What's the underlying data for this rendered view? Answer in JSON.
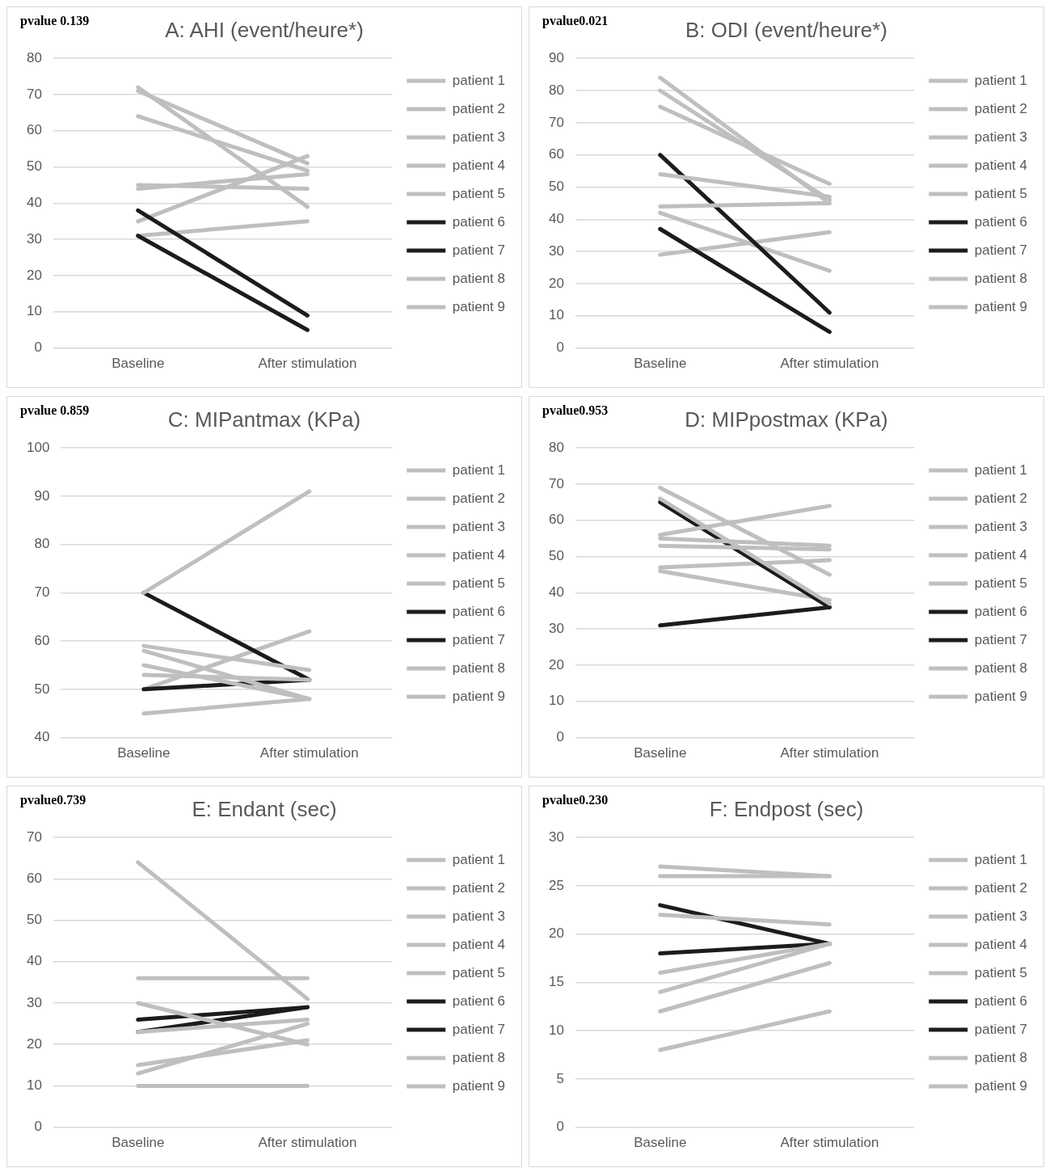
{
  "chart_data": [
    {
      "type": "line",
      "title": "A: AHI (event/heure*)",
      "annotations": [
        "pvalue 0.139"
      ],
      "categories": [
        "Baseline",
        "After stimulation"
      ],
      "ylim": [
        0,
        80
      ],
      "yticks": [
        0,
        10,
        20,
        30,
        40,
        50,
        60,
        70,
        80
      ],
      "grid": "y",
      "legend": "right",
      "marker": "none",
      "series": [
        {
          "name": "patient 1",
          "color": "#bfbfbf",
          "values": [
            72,
            39
          ]
        },
        {
          "name": "patient 2",
          "color": "#bfbfbf",
          "values": [
            71,
            51
          ]
        },
        {
          "name": "patient 3",
          "color": "#bfbfbf",
          "values": [
            64,
            49
          ]
        },
        {
          "name": "patient 4",
          "color": "#bfbfbf",
          "values": [
            45,
            44
          ]
        },
        {
          "name": "patient 5",
          "color": "#bfbfbf",
          "values": [
            44,
            48
          ]
        },
        {
          "name": "patient 6",
          "color": "#1c1c1c",
          "values": [
            38,
            9
          ]
        },
        {
          "name": "patient 7",
          "color": "#1c1c1c",
          "values": [
            31,
            5
          ]
        },
        {
          "name": "patient 8",
          "color": "#bfbfbf",
          "values": [
            35,
            53
          ]
        },
        {
          "name": "patient 9",
          "color": "#bfbfbf",
          "values": [
            31,
            35
          ]
        }
      ]
    },
    {
      "type": "line",
      "title": "B: ODI (event/heure*)",
      "annotations": [
        "pvalue0.021"
      ],
      "categories": [
        "Baseline",
        "After stimulation"
      ],
      "ylim": [
        0,
        90
      ],
      "yticks": [
        0,
        10,
        20,
        30,
        40,
        50,
        60,
        70,
        80,
        90
      ],
      "grid": "y",
      "legend": "right",
      "marker": "none",
      "series": [
        {
          "name": "patient 1",
          "color": "#bfbfbf",
          "values": [
            84,
            45
          ]
        },
        {
          "name": "patient 2",
          "color": "#bfbfbf",
          "values": [
            80,
            46
          ]
        },
        {
          "name": "patient 3",
          "color": "#bfbfbf",
          "values": [
            75,
            51
          ]
        },
        {
          "name": "patient 4",
          "color": "#bfbfbf",
          "values": [
            54,
            47
          ]
        },
        {
          "name": "patient 5",
          "color": "#bfbfbf",
          "values": [
            44,
            45
          ]
        },
        {
          "name": "patient 6",
          "color": "#1c1c1c",
          "values": [
            60,
            11
          ]
        },
        {
          "name": "patient 7",
          "color": "#1c1c1c",
          "values": [
            37,
            5
          ]
        },
        {
          "name": "patient 8",
          "color": "#bfbfbf",
          "values": [
            42,
            24
          ]
        },
        {
          "name": "patient 9",
          "color": "#bfbfbf",
          "values": [
            29,
            36
          ]
        }
      ]
    },
    {
      "type": "line",
      "title": "C: MIPantmax (KPa)",
      "annotations": [
        "pvalue 0.859"
      ],
      "categories": [
        "Baseline",
        "After stimulation"
      ],
      "ylim": [
        40,
        100
      ],
      "yticks": [
        40,
        50,
        60,
        70,
        80,
        90,
        100
      ],
      "grid": "y",
      "legend": "right",
      "marker": "none",
      "series": [
        {
          "name": "patient 1",
          "color": "#bfbfbf",
          "values": [
            70,
            91
          ]
        },
        {
          "name": "patient 2",
          "color": "#bfbfbf",
          "values": [
            59,
            54
          ]
        },
        {
          "name": "patient 3",
          "color": "#bfbfbf",
          "values": [
            58,
            48
          ]
        },
        {
          "name": "patient 4",
          "color": "#bfbfbf",
          "values": [
            55,
            48
          ]
        },
        {
          "name": "patient 5",
          "color": "#bfbfbf",
          "values": [
            53,
            52
          ]
        },
        {
          "name": "patient 6",
          "color": "#1c1c1c",
          "values": [
            70,
            52
          ]
        },
        {
          "name": "patient 7",
          "color": "#1c1c1c",
          "values": [
            50,
            52
          ]
        },
        {
          "name": "patient 8",
          "color": "#bfbfbf",
          "values": [
            50,
            62
          ]
        },
        {
          "name": "patient 9",
          "color": "#bfbfbf",
          "values": [
            45,
            48
          ]
        }
      ]
    },
    {
      "type": "line",
      "title": "D: MIPpostmax (KPa)",
      "annotations": [
        "pvalue0.953"
      ],
      "categories": [
        "Baseline",
        "After stimulation"
      ],
      "ylim": [
        0,
        80
      ],
      "yticks": [
        0,
        10,
        20,
        30,
        40,
        50,
        60,
        70,
        80
      ],
      "grid": "y",
      "legend": "right",
      "marker": "none",
      "series": [
        {
          "name": "patient 1",
          "color": "#bfbfbf",
          "values": [
            69,
            45
          ]
        },
        {
          "name": "patient 2",
          "color": "#bfbfbf",
          "values": [
            66,
            37
          ]
        },
        {
          "name": "patient 3",
          "color": "#bfbfbf",
          "values": [
            56,
            64
          ]
        },
        {
          "name": "patient 4",
          "color": "#bfbfbf",
          "values": [
            55,
            53
          ]
        },
        {
          "name": "patient 5",
          "color": "#bfbfbf",
          "values": [
            53,
            52
          ]
        },
        {
          "name": "patient 6",
          "color": "#1c1c1c",
          "values": [
            65,
            36
          ]
        },
        {
          "name": "patient 7",
          "color": "#1c1c1c",
          "values": [
            31,
            36
          ]
        },
        {
          "name": "patient 8",
          "color": "#bfbfbf",
          "values": [
            47,
            49
          ]
        },
        {
          "name": "patient 9",
          "color": "#bfbfbf",
          "values": [
            46,
            38
          ]
        }
      ]
    },
    {
      "type": "line",
      "title": "E: Endant (sec)",
      "annotations": [
        "pvalue0.739"
      ],
      "categories": [
        "Baseline",
        "After stimulation"
      ],
      "ylim": [
        0,
        70
      ],
      "yticks": [
        0,
        10,
        20,
        30,
        40,
        50,
        60,
        70
      ],
      "grid": "y",
      "legend": "right",
      "marker": "none",
      "series": [
        {
          "name": "patient 1",
          "color": "#bfbfbf",
          "values": [
            64,
            31
          ]
        },
        {
          "name": "patient 2",
          "color": "#bfbfbf",
          "values": [
            36,
            36
          ]
        },
        {
          "name": "patient 3",
          "color": "#bfbfbf",
          "values": [
            30,
            20
          ]
        },
        {
          "name": "patient 4",
          "color": "#bfbfbf",
          "values": [
            23,
            26
          ]
        },
        {
          "name": "patient 5",
          "color": "#bfbfbf",
          "values": [
            15,
            21
          ]
        },
        {
          "name": "patient 6",
          "color": "#1c1c1c",
          "values": [
            26,
            29
          ]
        },
        {
          "name": "patient 7",
          "color": "#1c1c1c",
          "values": [
            23,
            29
          ]
        },
        {
          "name": "patient 8",
          "color": "#bfbfbf",
          "values": [
            13,
            25
          ]
        },
        {
          "name": "patient 9",
          "color": "#bfbfbf",
          "values": [
            10,
            10
          ]
        }
      ]
    },
    {
      "type": "line",
      "title": "F: Endpost (sec)",
      "annotations": [
        "pvalue0.230"
      ],
      "categories": [
        "Baseline",
        "After stimulation"
      ],
      "ylim": [
        0,
        30
      ],
      "yticks": [
        0,
        5,
        10,
        15,
        20,
        25,
        30
      ],
      "grid": "y",
      "legend": "right",
      "marker": "none",
      "series": [
        {
          "name": "patient 1",
          "color": "#bfbfbf",
          "values": [
            27,
            26
          ]
        },
        {
          "name": "patient 2",
          "color": "#bfbfbf",
          "values": [
            26,
            26
          ]
        },
        {
          "name": "patient 3",
          "color": "#bfbfbf",
          "values": [
            22,
            21
          ]
        },
        {
          "name": "patient 4",
          "color": "#bfbfbf",
          "values": [
            16,
            19
          ]
        },
        {
          "name": "patient 5",
          "color": "#bfbfbf",
          "values": [
            14,
            19
          ]
        },
        {
          "name": "patient 6",
          "color": "#1c1c1c",
          "values": [
            23,
            19
          ]
        },
        {
          "name": "patient 7",
          "color": "#1c1c1c",
          "values": [
            18,
            19
          ]
        },
        {
          "name": "patient 8",
          "color": "#bfbfbf",
          "values": [
            12,
            17
          ]
        },
        {
          "name": "patient 9",
          "color": "#bfbfbf",
          "values": [
            8,
            12
          ]
        }
      ]
    }
  ]
}
